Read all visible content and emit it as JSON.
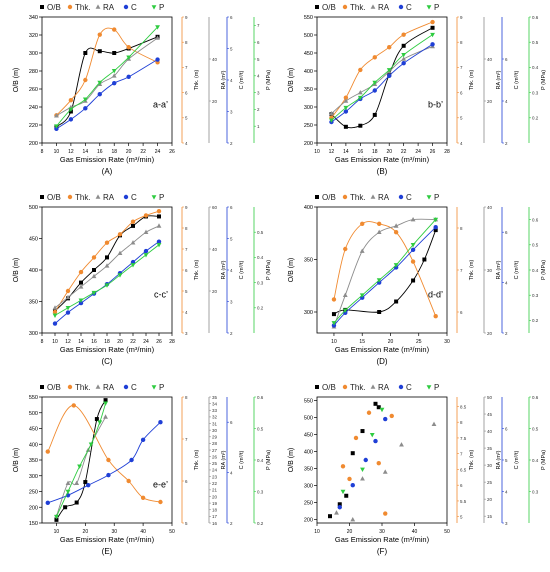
{
  "figure": {
    "common_xlabel": "Gas Emission Rate (m³/min)",
    "legend_labels": [
      "O/B",
      "Thk.",
      "RA",
      "C",
      "P"
    ],
    "colors": {
      "ob": "#000000",
      "thk": "#f08a30",
      "ra": "#8c8c8c",
      "c": "#1f3fd6",
      "p": "#2ecc40"
    },
    "axis_titles": {
      "ob": "O/B (m)",
      "thk": "Thk. (m)",
      "ra": "RA (m²)",
      "c": "C (m³/t)",
      "p": "P (MPa)"
    }
  },
  "chart_data": [
    {
      "type": "scatter",
      "panel_label": "(A)",
      "annotation": "a-a’",
      "x_ticks": [
        8,
        10,
        12,
        14,
        16,
        18,
        20,
        22,
        24,
        26
      ],
      "xlim": [
        8,
        26
      ],
      "axes": {
        "ob": {
          "lim": [
            200,
            340
          ],
          "ticks": [
            200,
            220,
            240,
            260,
            280,
            300,
            320,
            340
          ]
        },
        "thk": {
          "lim": [
            4,
            9
          ],
          "ticks": [
            4,
            5,
            6,
            7,
            8,
            9
          ]
        },
        "ra": {
          "lim": [
            0,
            60
          ],
          "ticks": [
            20,
            40
          ]
        },
        "c": {
          "lim": [
            2,
            6
          ],
          "ticks": [
            2,
            3,
            4,
            5,
            6
          ]
        },
        "p": {
          "lim": [
            0,
            7.5
          ],
          "ticks": [
            1,
            2,
            3,
            4,
            5,
            6,
            7
          ]
        }
      },
      "series": [
        {
          "key": "ob",
          "name": "O/B",
          "x": [
            10,
            12,
            14,
            16,
            18,
            20,
            24
          ],
          "y": [
            218,
            235,
            300,
            302,
            300,
            305,
            318
          ]
        },
        {
          "key": "thk",
          "name": "Thk.",
          "x": [
            10,
            12,
            14,
            16,
            18,
            20,
            24
          ],
          "y": [
            5.1,
            5.7,
            6.5,
            8.3,
            8.5,
            7.8,
            7.2
          ]
        },
        {
          "key": "ra",
          "name": "RA",
          "x": [
            10,
            12,
            14,
            16,
            18,
            20,
            24
          ],
          "y": [
            13,
            17,
            20,
            28,
            32,
            40,
            50
          ]
        },
        {
          "key": "c",
          "name": "C",
          "x": [
            10,
            12,
            14,
            16,
            18,
            20,
            24
          ],
          "y": [
            2.45,
            2.75,
            3.1,
            3.55,
            3.9,
            4.1,
            4.65
          ]
        },
        {
          "key": "p",
          "name": "P",
          "x": [
            10,
            12,
            14,
            16,
            18,
            20,
            24
          ],
          "y": [
            1.0,
            2.0,
            2.6,
            3.6,
            4.3,
            5.1,
            6.9
          ]
        }
      ]
    },
    {
      "type": "scatter",
      "panel_label": "(B)",
      "annotation": "b-b’",
      "x_ticks": [
        10,
        12,
        14,
        16,
        18,
        20,
        22,
        24,
        26,
        28
      ],
      "xlim": [
        10,
        28
      ],
      "axes": {
        "ob": {
          "lim": [
            200,
            550
          ],
          "ticks": [
            200,
            250,
            300,
            350,
            400,
            450,
            500,
            550
          ]
        },
        "thk": {
          "lim": [
            4,
            9
          ],
          "ticks": [
            4,
            5,
            6,
            7,
            8,
            9
          ]
        },
        "ra": {
          "lim": [
            0,
            60
          ],
          "ticks": [
            20,
            40
          ]
        },
        "c": {
          "lim": [
            2,
            8
          ],
          "ticks": [
            2,
            4,
            6
          ]
        },
        "p": {
          "lim": [
            0.1,
            0.6
          ],
          "ticks": [
            0.2,
            0.3,
            0.4,
            0.5,
            0.6
          ]
        }
      },
      "series": [
        {
          "key": "ob",
          "name": "O/B",
          "x": [
            12,
            14,
            16,
            18,
            20,
            22,
            26
          ],
          "y": [
            280,
            245,
            248,
            278,
            390,
            470,
            520
          ]
        },
        {
          "key": "thk",
          "name": "Thk.",
          "x": [
            12,
            14,
            16,
            18,
            20,
            22,
            26
          ],
          "y": [
            5.0,
            5.8,
            6.9,
            7.4,
            7.8,
            8.3,
            8.8
          ]
        },
        {
          "key": "ra",
          "name": "RA",
          "x": [
            12,
            14,
            16,
            18,
            20,
            22,
            26
          ],
          "y": [
            14,
            20,
            24,
            28,
            34,
            40,
            46
          ]
        },
        {
          "key": "c",
          "name": "C",
          "x": [
            12,
            14,
            16,
            18,
            20,
            22,
            26
          ],
          "y": [
            3.0,
            3.5,
            4.1,
            4.5,
            5.2,
            5.8,
            6.7
          ]
        },
        {
          "key": "p",
          "name": "P",
          "x": [
            12,
            14,
            16,
            18,
            20,
            22,
            26
          ],
          "y": [
            0.19,
            0.24,
            0.28,
            0.34,
            0.39,
            0.45,
            0.53
          ]
        }
      ]
    },
    {
      "type": "scatter",
      "panel_label": "(C)",
      "annotation": "c-c’",
      "x_ticks": [
        8,
        10,
        12,
        14,
        16,
        18,
        20,
        22,
        24,
        26,
        28
      ],
      "xlim": [
        8,
        28
      ],
      "axes": {
        "ob": {
          "lim": [
            300,
            500
          ],
          "ticks": [
            300,
            350,
            400,
            450,
            500
          ]
        },
        "thk": {
          "lim": [
            3,
            9
          ],
          "ticks": [
            3,
            4,
            5,
            6,
            7,
            8,
            9
          ]
        },
        "ra": {
          "lim": [
            0,
            60
          ],
          "ticks": [
            20,
            40,
            60
          ]
        },
        "c": {
          "lim": [
            2,
            6
          ],
          "ticks": [
            2,
            3,
            4,
            5,
            6
          ]
        },
        "p": {
          "lim": [
            0.1,
            0.6
          ],
          "ticks": [
            0.2,
            0.3,
            0.4,
            0.5
          ]
        }
      },
      "series": [
        {
          "key": "ob",
          "name": "O/B",
          "x": [
            10,
            12,
            14,
            16,
            18,
            20,
            22,
            24,
            26
          ],
          "y": [
            335,
            355,
            380,
            400,
            420,
            455,
            470,
            485,
            485
          ]
        },
        {
          "key": "thk",
          "name": "Thk.",
          "x": [
            10,
            12,
            14,
            16,
            18,
            20,
            22,
            24,
            26
          ],
          "y": [
            4.0,
            5.0,
            5.9,
            6.6,
            7.3,
            7.7,
            8.3,
            8.6,
            8.8
          ]
        },
        {
          "key": "ra",
          "name": "RA",
          "x": [
            10,
            12,
            14,
            16,
            18,
            20,
            22,
            24,
            26
          ],
          "y": [
            12,
            17,
            22,
            27,
            32,
            38,
            43,
            48,
            51
          ]
        },
        {
          "key": "c",
          "name": "C",
          "x": [
            10,
            12,
            14,
            16,
            18,
            20,
            22,
            24,
            26
          ],
          "y": [
            2.3,
            2.65,
            2.95,
            3.25,
            3.55,
            3.9,
            4.25,
            4.6,
            4.9
          ]
        },
        {
          "key": "p",
          "name": "P",
          "x": [
            10,
            12,
            14,
            16,
            18,
            20,
            22,
            24,
            26
          ],
          "y": [
            0.17,
            0.2,
            0.23,
            0.26,
            0.29,
            0.33,
            0.37,
            0.41,
            0.45
          ]
        }
      ]
    },
    {
      "type": "scatter",
      "panel_label": "(D)",
      "annotation": "d-d’",
      "x_ticks": [
        10,
        15,
        20,
        25,
        30
      ],
      "xlim": [
        7,
        30
      ],
      "axes": {
        "ob": {
          "lim": [
            280,
            400
          ],
          "ticks": [
            300,
            350,
            400
          ]
        },
        "thk": {
          "lim": [
            5.5,
            8.5
          ],
          "ticks": [
            6,
            7,
            8
          ]
        },
        "ra": {
          "lim": [
            20,
            40
          ],
          "ticks": [
            20,
            30,
            40
          ]
        },
        "c": {
          "lim": [
            2,
            7
          ],
          "ticks": [
            2,
            4,
            6
          ]
        },
        "p": {
          "lim": [
            0.15,
            0.65
          ],
          "ticks": [
            0.2,
            0.3,
            0.4,
            0.5,
            0.6
          ]
        }
      },
      "series": [
        {
          "key": "ob",
          "name": "O/B",
          "x": [
            10,
            12,
            18,
            21,
            24,
            26,
            28
          ],
          "y": [
            298,
            302,
            300,
            310,
            330,
            350,
            378
          ]
        },
        {
          "key": "thk",
          "name": "Thk.",
          "x": [
            10,
            12,
            15,
            18,
            21,
            24,
            28
          ],
          "y": [
            6.3,
            7.5,
            8.1,
            8.1,
            7.9,
            7.2,
            5.9
          ]
        },
        {
          "key": "ra",
          "name": "RA",
          "x": [
            10,
            12,
            15,
            18,
            21,
            24,
            28
          ],
          "y": [
            21,
            26,
            33,
            36,
            37,
            38,
            38
          ]
        },
        {
          "key": "c",
          "name": "C",
          "x": [
            10,
            12,
            15,
            18,
            21,
            24,
            28
          ],
          "y": [
            2.3,
            2.8,
            3.4,
            4.0,
            4.6,
            5.3,
            6.2
          ]
        },
        {
          "key": "p",
          "name": "P",
          "x": [
            10,
            12,
            15,
            18,
            21,
            24,
            28
          ],
          "y": [
            0.19,
            0.24,
            0.3,
            0.36,
            0.42,
            0.5,
            0.6
          ]
        }
      ]
    },
    {
      "type": "scatter",
      "panel_label": "(E)",
      "annotation": "e-e’",
      "x_ticks": [
        10,
        20,
        30,
        40,
        50
      ],
      "xlim": [
        5,
        50
      ],
      "axes": {
        "ob": {
          "lim": [
            150,
            550
          ],
          "ticks": [
            150,
            200,
            250,
            300,
            350,
            400,
            450,
            500,
            550
          ]
        },
        "thk": {
          "lim": [
            5,
            8
          ],
          "ticks": [
            5,
            6,
            7,
            8
          ]
        },
        "ra": {
          "lim": [
            16,
            35
          ],
          "ticks": [
            16,
            17,
            18,
            19,
            20,
            21,
            22,
            23,
            24,
            25,
            26,
            27,
            28,
            29,
            30,
            31,
            32,
            33,
            34,
            35
          ]
        },
        "c": {
          "lim": [
            2,
            7
          ],
          "ticks": [
            2,
            4,
            6
          ]
        },
        "p": {
          "lim": [
            0.2,
            0.6
          ],
          "ticks": [
            0.2,
            0.3,
            0.4,
            0.5,
            0.6
          ]
        }
      },
      "series": [
        {
          "key": "ob",
          "name": "O/B",
          "x": [
            10,
            13,
            17,
            20,
            24,
            27
          ],
          "y": [
            160,
            200,
            215,
            280,
            480,
            540
          ]
        },
        {
          "key": "thk",
          "name": "Thk.",
          "x": [
            7,
            16,
            28,
            35,
            40,
            46
          ],
          "y": [
            6.7,
            7.8,
            6.5,
            6.0,
            5.6,
            5.5
          ]
        },
        {
          "key": "ra",
          "name": "RA",
          "x": [
            10,
            14,
            17,
            21,
            27
          ],
          "y": [
            17,
            22,
            22,
            27,
            32
          ]
        },
        {
          "key": "c",
          "name": "C",
          "x": [
            7,
            14,
            21,
            28,
            36,
            40,
            46
          ],
          "y": [
            2.8,
            3.1,
            3.5,
            3.9,
            4.5,
            5.3,
            6.0
          ]
        },
        {
          "key": "p",
          "name": "P",
          "x": [
            10,
            14,
            18,
            22,
            25,
            27
          ],
          "y": [
            0.22,
            0.3,
            0.38,
            0.45,
            0.52,
            0.58
          ]
        }
      ]
    },
    {
      "type": "scatter",
      "panel_label": "(F)",
      "x_ticks": [
        10,
        20,
        30,
        40,
        50
      ],
      "xlim": [
        10,
        50
      ],
      "axes": {
        "ob": {
          "lim": [
            190,
            560
          ],
          "ticks": [
            200,
            250,
            300,
            350,
            400,
            450,
            500,
            550
          ]
        },
        "thk": {
          "lim": [
            4.8,
            8.8
          ],
          "ticks": [
            5.0,
            5.5,
            6.0,
            6.5,
            7.0,
            7.5,
            8.0,
            8.5
          ]
        },
        "ra": {
          "lim": [
            13,
            50
          ],
          "ticks": [
            15,
            20,
            25,
            30,
            35,
            40,
            45,
            50
          ]
        },
        "c": {
          "lim": [
            3,
            7
          ],
          "ticks": [
            3,
            4,
            5,
            6
          ]
        },
        "p": {
          "lim": [
            0.2,
            0.6
          ],
          "ticks": [
            0.3,
            0.4,
            0.5,
            0.6
          ]
        }
      },
      "series": [
        {
          "key": "ob",
          "name": "O/B",
          "x": [
            14,
            17,
            19,
            21,
            24,
            28,
            29
          ],
          "y": [
            210,
            245,
            270,
            395,
            460,
            540,
            530
          ]
        },
        {
          "key": "thk",
          "name": "Thk.",
          "x": [
            18,
            20,
            22,
            26,
            29,
            31,
            33
          ],
          "y": [
            6.6,
            6.2,
            7.5,
            8.3,
            6.7,
            5.1,
            8.2
          ]
        },
        {
          "key": "ra",
          "name": "RA",
          "x": [
            16,
            21,
            24,
            31,
            36,
            46
          ],
          "y": [
            16,
            14,
            26,
            28,
            36,
            42
          ]
        },
        {
          "key": "c",
          "name": "C",
          "x": [
            17,
            21,
            25,
            28,
            31
          ],
          "y": [
            3.5,
            4.2,
            5.0,
            5.6,
            6.3
          ]
        },
        {
          "key": "p",
          "name": "P",
          "x": [
            18,
            24,
            27,
            30
          ],
          "y": [
            0.3,
            0.37,
            0.48,
            0.56
          ]
        }
      ]
    }
  ]
}
